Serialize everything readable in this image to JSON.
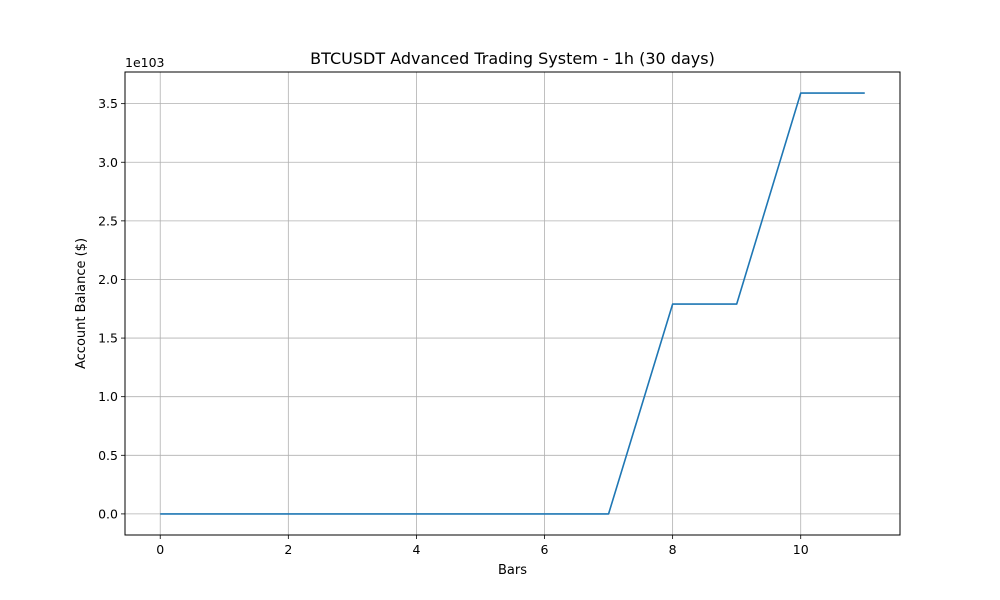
{
  "chart_data": {
    "type": "line",
    "title": "BTCUSDT Advanced Trading System - 1h (30 days)",
    "xlabel": "Bars",
    "ylabel": "Account Balance ($)",
    "y_offset_text": "1e103",
    "x": [
      0,
      1,
      2,
      3,
      4,
      5,
      6,
      7,
      8,
      9,
      10,
      11
    ],
    "series": [
      {
        "values": [
          0.0,
          0.0,
          0.0,
          0.0,
          0.0,
          0.0,
          0.0,
          0.0,
          1.79,
          1.79,
          3.59,
          3.59
        ]
      }
    ],
    "xlim": [
      -0.55,
      11.55
    ],
    "ylim": [
      -0.18,
      3.77
    ],
    "xticks": [
      0,
      2,
      4,
      6,
      8,
      10
    ],
    "xtick_labels": [
      "0",
      "2",
      "4",
      "6",
      "8",
      "10"
    ],
    "yticks": [
      0.0,
      0.5,
      1.0,
      1.5,
      2.0,
      2.5,
      3.0,
      3.5
    ],
    "ytick_labels": [
      "0.0",
      "0.5",
      "1.0",
      "1.5",
      "2.0",
      "2.5",
      "3.0",
      "3.5"
    ],
    "grid": true,
    "line_color": "#1f77b4",
    "grid_color": "#b0b0b0"
  }
}
